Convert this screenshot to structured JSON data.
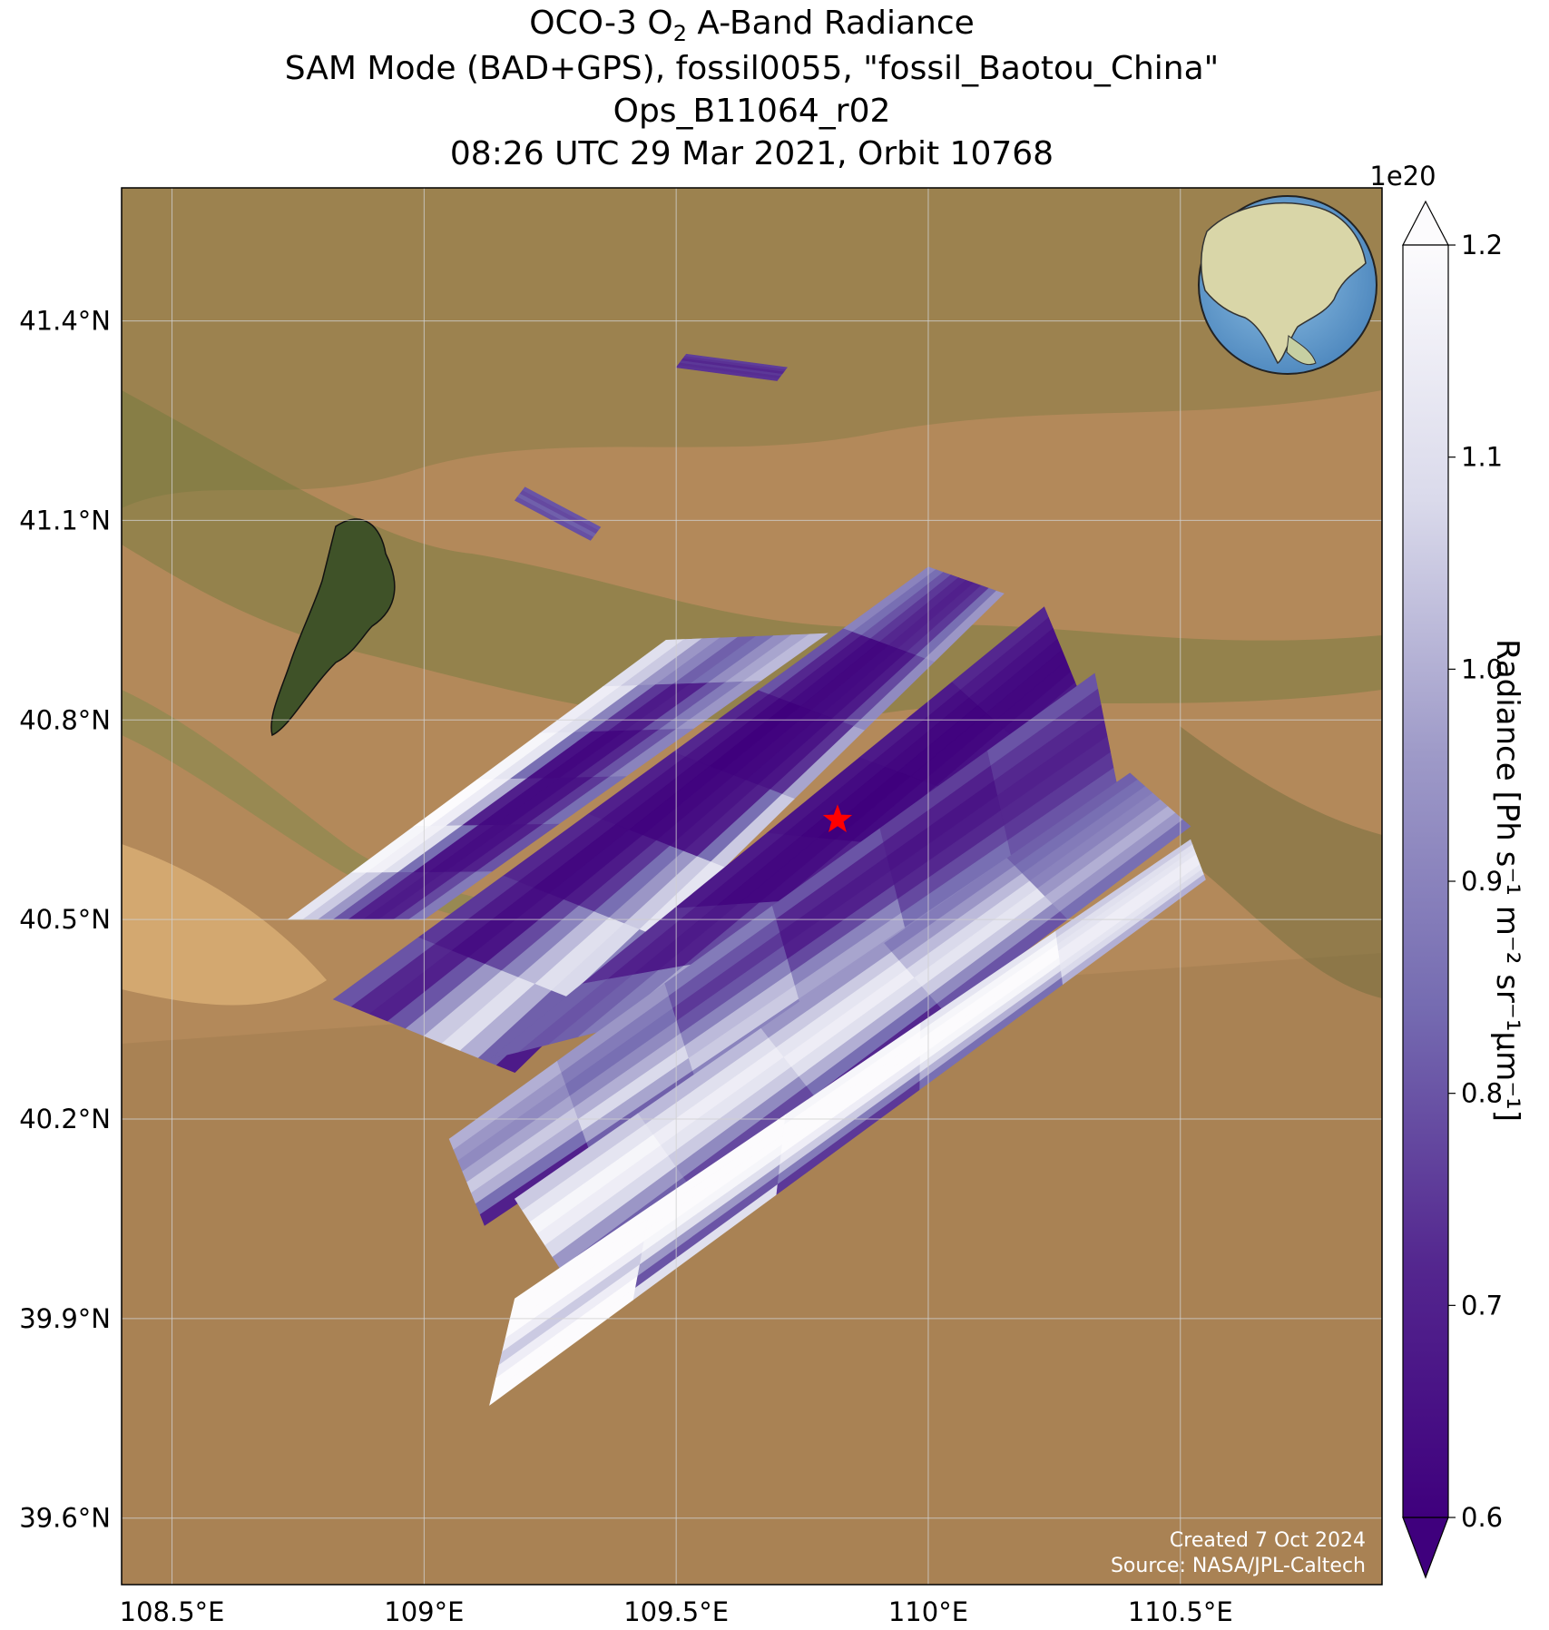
{
  "title": {
    "line1_prefix": "OCO-3 O",
    "line1_sub": "2",
    "line1_suffix": " A-Band Radiance",
    "line2": "SAM Mode (BAD+GPS), fossil0055, \"fossil_Baotou_China\"",
    "line3": "Ops_B11064_r02",
    "line4": "08:26 UTC 29 Mar 2021, Orbit 10768"
  },
  "map": {
    "lon_range": [
      108.4,
      110.9
    ],
    "lat_range": [
      39.5,
      41.6
    ],
    "lon_ticks": [
      {
        "value": 108.5,
        "label": "108.5°E"
      },
      {
        "value": 109.0,
        "label": "109°E"
      },
      {
        "value": 109.5,
        "label": "109.5°E"
      },
      {
        "value": 110.0,
        "label": "110°E"
      },
      {
        "value": 110.5,
        "label": "110.5°E"
      }
    ],
    "lat_ticks": [
      {
        "value": 39.6,
        "label": "39.6°N"
      },
      {
        "value": 39.9,
        "label": "39.9°N"
      },
      {
        "value": 40.2,
        "label": "40.2°N"
      },
      {
        "value": 40.5,
        "label": "40.5°N"
      },
      {
        "value": 40.8,
        "label": "40.8°N"
      },
      {
        "value": 41.1,
        "label": "41.1°N"
      },
      {
        "value": 41.4,
        "label": "41.4°N"
      }
    ],
    "target": {
      "lon": 109.82,
      "lat": 40.65,
      "icon": "red-star-icon",
      "color": "#ff0000"
    },
    "basemap_colors": {
      "desert": "#b58a55",
      "steppe": "#8e7a45",
      "vegetation": "#4f6a30",
      "sand": "#d6ad72"
    },
    "credit_line1": "Created 7 Oct 2024",
    "credit_line2": "Source: NASA/JPL-Caltech"
  },
  "colorbar": {
    "label_text": "Radiance [Ph s⁻¹ m⁻² sr⁻¹μm⁻¹]",
    "exponent": "1e20",
    "range": [
      0.6,
      1.2
    ],
    "extend": "both",
    "ticks": [
      {
        "value": 0.6,
        "label": "0.6"
      },
      {
        "value": 0.7,
        "label": "0.7"
      },
      {
        "value": 0.8,
        "label": "0.8"
      },
      {
        "value": 0.9,
        "label": "0.9"
      },
      {
        "value": 1.0,
        "label": "1.0"
      },
      {
        "value": 1.1,
        "label": "1.1"
      },
      {
        "value": 1.2,
        "label": "1.2"
      }
    ],
    "colormap": "Purples_r",
    "color_low": "#3f007d",
    "color_high": "#fcfbfd"
  },
  "chart_data": {
    "type": "heatmap",
    "xlabel": "",
    "ylabel": "",
    "xlim": [
      108.4,
      110.9
    ],
    "ylim": [
      39.5,
      41.6
    ],
    "value_range": [
      0.6,
      1.2
    ],
    "value_scale": "1e20",
    "swaths": [
      {
        "name": "",
        "corners": [
          [
            109.52,
            41.35
          ],
          [
            109.5,
            41.33
          ],
          [
            109.7,
            41.31
          ],
          [
            109.72,
            41.33
          ]
        ],
        "values": [
          [
            0.76,
            0.74,
            0.72,
            0.75,
            0.73,
            0.74
          ]
        ]
      },
      {
        "name": "",
        "corners": [
          [
            109.2,
            41.15
          ],
          [
            109.18,
            41.13
          ],
          [
            109.33,
            41.07
          ],
          [
            109.35,
            41.09
          ]
        ],
        "values": [
          [
            0.8,
            0.78,
            0.82,
            0.79
          ]
        ]
      },
      {
        "name": "",
        "corners": [
          [
            109.48,
            40.92
          ],
          [
            109.8,
            40.93
          ],
          [
            109.0,
            40.5
          ],
          [
            108.73,
            40.5
          ]
        ],
        "values": [
          [
            1.1,
            1.05,
            0.95,
            0.9,
            0.82,
            0.85,
            0.93,
            0.98,
            1.02
          ],
          [
            1.15,
            1.1,
            0.9,
            0.75,
            0.68,
            0.7,
            0.8,
            0.88,
            0.95
          ],
          [
            1.18,
            1.12,
            0.85,
            0.65,
            0.62,
            0.64,
            0.72,
            0.8,
            0.9
          ],
          [
            1.2,
            1.15,
            1.0,
            0.7,
            0.63,
            0.63,
            0.66,
            0.75,
            0.85
          ],
          [
            1.18,
            1.16,
            1.1,
            0.85,
            0.66,
            0.64,
            0.65,
            0.7,
            0.8
          ],
          [
            1.12,
            1.05,
            0.95,
            0.8,
            0.7,
            0.68,
            0.7,
            0.78,
            0.88
          ]
        ]
      },
      {
        "name": "",
        "corners": [
          [
            110.0,
            41.03
          ],
          [
            110.15,
            40.99
          ],
          [
            109.18,
            40.27
          ],
          [
            108.82,
            40.38
          ]
        ],
        "values": [
          [
            0.9,
            0.85,
            0.8,
            0.75,
            0.72,
            0.7,
            0.72,
            0.75,
            0.85,
            0.95
          ],
          [
            0.8,
            0.72,
            0.66,
            0.63,
            0.62,
            0.63,
            0.64,
            0.68,
            0.78,
            0.92
          ],
          [
            0.72,
            0.66,
            0.62,
            0.6,
            0.61,
            0.62,
            0.63,
            0.66,
            0.74,
            0.98
          ],
          [
            0.7,
            0.65,
            0.62,
            0.61,
            0.62,
            0.64,
            0.66,
            0.7,
            0.85,
            1.05
          ],
          [
            0.72,
            0.66,
            0.62,
            0.63,
            0.68,
            0.75,
            0.85,
            0.95,
            1.05,
            1.12
          ],
          [
            0.75,
            0.68,
            0.64,
            0.66,
            0.78,
            0.9,
            1.02,
            1.1,
            1.08,
            0.9
          ],
          [
            0.8,
            0.72,
            0.7,
            0.8,
            0.95,
            1.05,
            1.1,
            1.0,
            0.82,
            0.68
          ]
        ]
      },
      {
        "name": "",
        "corners": [
          [
            110.23,
            40.97
          ],
          [
            110.3,
            40.84
          ],
          [
            109.6,
            40.38
          ],
          [
            109.13,
            40.29
          ]
        ],
        "values": [
          [
            0.72,
            0.68,
            0.65,
            0.63,
            0.62,
            0.62,
            0.64,
            0.68
          ],
          [
            0.68,
            0.64,
            0.62,
            0.61,
            0.61,
            0.62,
            0.65,
            0.72
          ],
          [
            0.66,
            0.63,
            0.61,
            0.6,
            0.61,
            0.63,
            0.68,
            0.8
          ],
          [
            0.68,
            0.64,
            0.62,
            0.62,
            0.64,
            0.7,
            0.8,
            0.95
          ],
          [
            0.74,
            0.7,
            0.68,
            0.7,
            0.78,
            0.88,
            1.0,
            1.1
          ],
          [
            0.82,
            0.8,
            0.82,
            0.88,
            0.98,
            1.08,
            1.15,
            1.12
          ]
        ]
      },
      {
        "name": "",
        "corners": [
          [
            110.33,
            40.87
          ],
          [
            110.38,
            40.68
          ],
          [
            109.12,
            40.04
          ],
          [
            109.05,
            40.17
          ]
        ],
        "values": [
          [
            0.8,
            0.75,
            0.72,
            0.7,
            0.72,
            0.75,
            0.8,
            0.85
          ],
          [
            0.76,
            0.7,
            0.66,
            0.68,
            0.72,
            0.78,
            0.85,
            0.9
          ],
          [
            0.8,
            0.72,
            0.68,
            0.7,
            0.78,
            0.9,
            0.98,
            0.95
          ],
          [
            0.88,
            0.8,
            0.75,
            0.8,
            0.9,
            1.02,
            1.05,
            0.9
          ],
          [
            0.95,
            0.88,
            0.85,
            0.92,
            1.0,
            1.08,
            0.98,
            0.82
          ],
          [
            1.0,
            0.95,
            0.92,
            0.98,
            1.05,
            1.0,
            0.85,
            0.7
          ]
        ]
      },
      {
        "name": "",
        "corners": [
          [
            110.4,
            40.72
          ],
          [
            110.52,
            40.64
          ],
          [
            109.3,
            39.94
          ],
          [
            109.18,
            40.08
          ]
        ],
        "values": [
          [
            0.82,
            0.85,
            0.88,
            0.9,
            0.95,
            1.0,
            0.95,
            0.85
          ],
          [
            0.88,
            0.95,
            1.02,
            1.08,
            1.12,
            1.05,
            0.92,
            0.8
          ],
          [
            0.95,
            1.05,
            1.12,
            1.15,
            1.1,
            1.0,
            0.85,
            0.72
          ],
          [
            1.02,
            1.1,
            1.15,
            1.12,
            1.05,
            0.92,
            0.78,
            0.66
          ],
          [
            1.05,
            1.12,
            1.18,
            1.15,
            1.08,
            0.95,
            0.82,
            0.7
          ]
        ]
      },
      {
        "name": "",
        "corners": [
          [
            110.52,
            40.62
          ],
          [
            110.55,
            40.56
          ],
          [
            109.13,
            39.77
          ],
          [
            109.18,
            39.93
          ]
        ],
        "values": [
          [
            1.05,
            1.1,
            1.12,
            1.15,
            1.15,
            1.12,
            1.08,
            1.0
          ],
          [
            1.12,
            1.18,
            1.2,
            1.2,
            1.18,
            1.1,
            1.0,
            0.85
          ],
          [
            1.18,
            1.2,
            1.21,
            1.2,
            1.15,
            1.05,
            0.88,
            0.75
          ],
          [
            1.2,
            1.21,
            1.21,
            1.18,
            1.1,
            0.95,
            0.8,
            1.1
          ],
          [
            1.21,
            1.21,
            1.2,
            1.15,
            1.05,
            1.15,
            1.2,
            1.21
          ]
        ]
      }
    ]
  }
}
